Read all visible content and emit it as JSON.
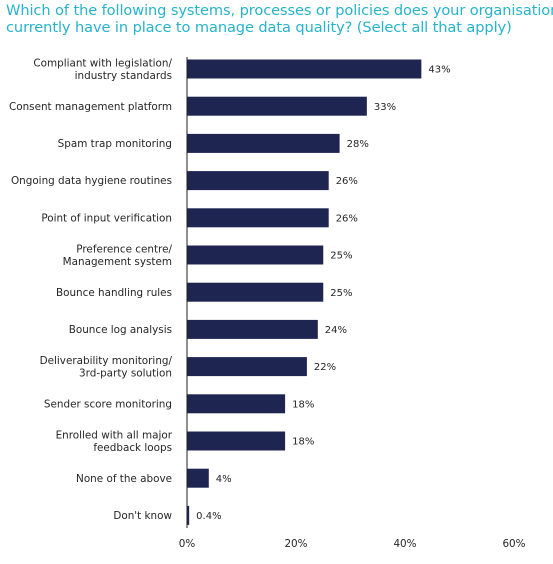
{
  "title_lines": [
    "Which of the following systems, processes or policies does your organisation",
    "currently have in place to manage data quality? (Select all that apply)"
  ],
  "colors": {
    "title": "#27b3c9",
    "bar": "#1f2551",
    "text": "#262626",
    "axis": "#222222"
  },
  "chart_data": {
    "type": "bar",
    "orientation": "horizontal",
    "title": "Which of the following systems, processes or policies does your organisation currently have in place to manage data quality? (Select all that apply)",
    "categories": [
      "Compliant with legislation/ industry standards",
      "Consent management platform",
      "Spam trap monitoring",
      "Ongoing data hygiene routines",
      "Point of input verification",
      "Preference centre/ Management system",
      "Bounce handling rules",
      "Bounce log analysis",
      "Deliverability monitoring/ 3rd-party solution",
      "Sender score monitoring",
      "Enrolled with all major feedback loops",
      "None of the above",
      "Don't know"
    ],
    "category_lines": [
      [
        "Compliant with legislation/",
        "industry standards"
      ],
      [
        "Consent management platform"
      ],
      [
        "Spam trap monitoring"
      ],
      [
        "Ongoing data hygiene routines"
      ],
      [
        "Point of input verification"
      ],
      [
        "Preference centre/",
        "Management system"
      ],
      [
        "Bounce handling rules"
      ],
      [
        "Bounce log analysis"
      ],
      [
        "Deliverability monitoring/",
        "3rd-party solution"
      ],
      [
        "Sender score monitoring"
      ],
      [
        "Enrolled with all major",
        "feedback loops"
      ],
      [
        "None of the above"
      ],
      [
        "Don't know"
      ]
    ],
    "values": [
      43,
      33,
      28,
      26,
      26,
      25,
      25,
      24,
      22,
      18,
      18,
      4,
      0.4
    ],
    "value_labels": [
      "43%",
      "33%",
      "28%",
      "26%",
      "26%",
      "25%",
      "25%",
      "24%",
      "22%",
      "18%",
      "18%",
      "4%",
      "0.4%"
    ],
    "xlim": [
      0,
      60
    ],
    "xticks": [
      0,
      20,
      40,
      60
    ],
    "xtick_labels": [
      "0%",
      "20%",
      "40%",
      "60%"
    ],
    "grid": false,
    "legend": "none"
  }
}
